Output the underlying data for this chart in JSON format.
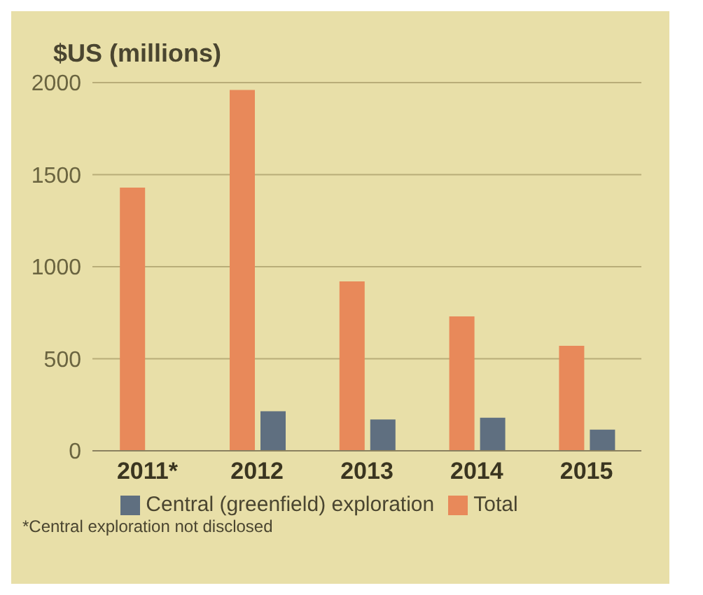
{
  "chart_data": {
    "type": "bar",
    "ylabel": "$US (millions)",
    "categories": [
      "2011*",
      "2012",
      "2013",
      "2014",
      "2015"
    ],
    "series": [
      {
        "name": "Total",
        "color": "#e8895a",
        "values": [
          1430,
          1960,
          920,
          730,
          570
        ]
      },
      {
        "name": "Central (greenfield) exploration",
        "color": "#5f6f80",
        "values": [
          null,
          215,
          170,
          180,
          115
        ]
      }
    ],
    "ylim": [
      0,
      2000
    ],
    "yticks": [
      0,
      500,
      1000,
      1500,
      2000
    ],
    "grid": "y",
    "legend": "bottom",
    "annotations": [
      "*Central exploration not disclosed"
    ]
  }
}
